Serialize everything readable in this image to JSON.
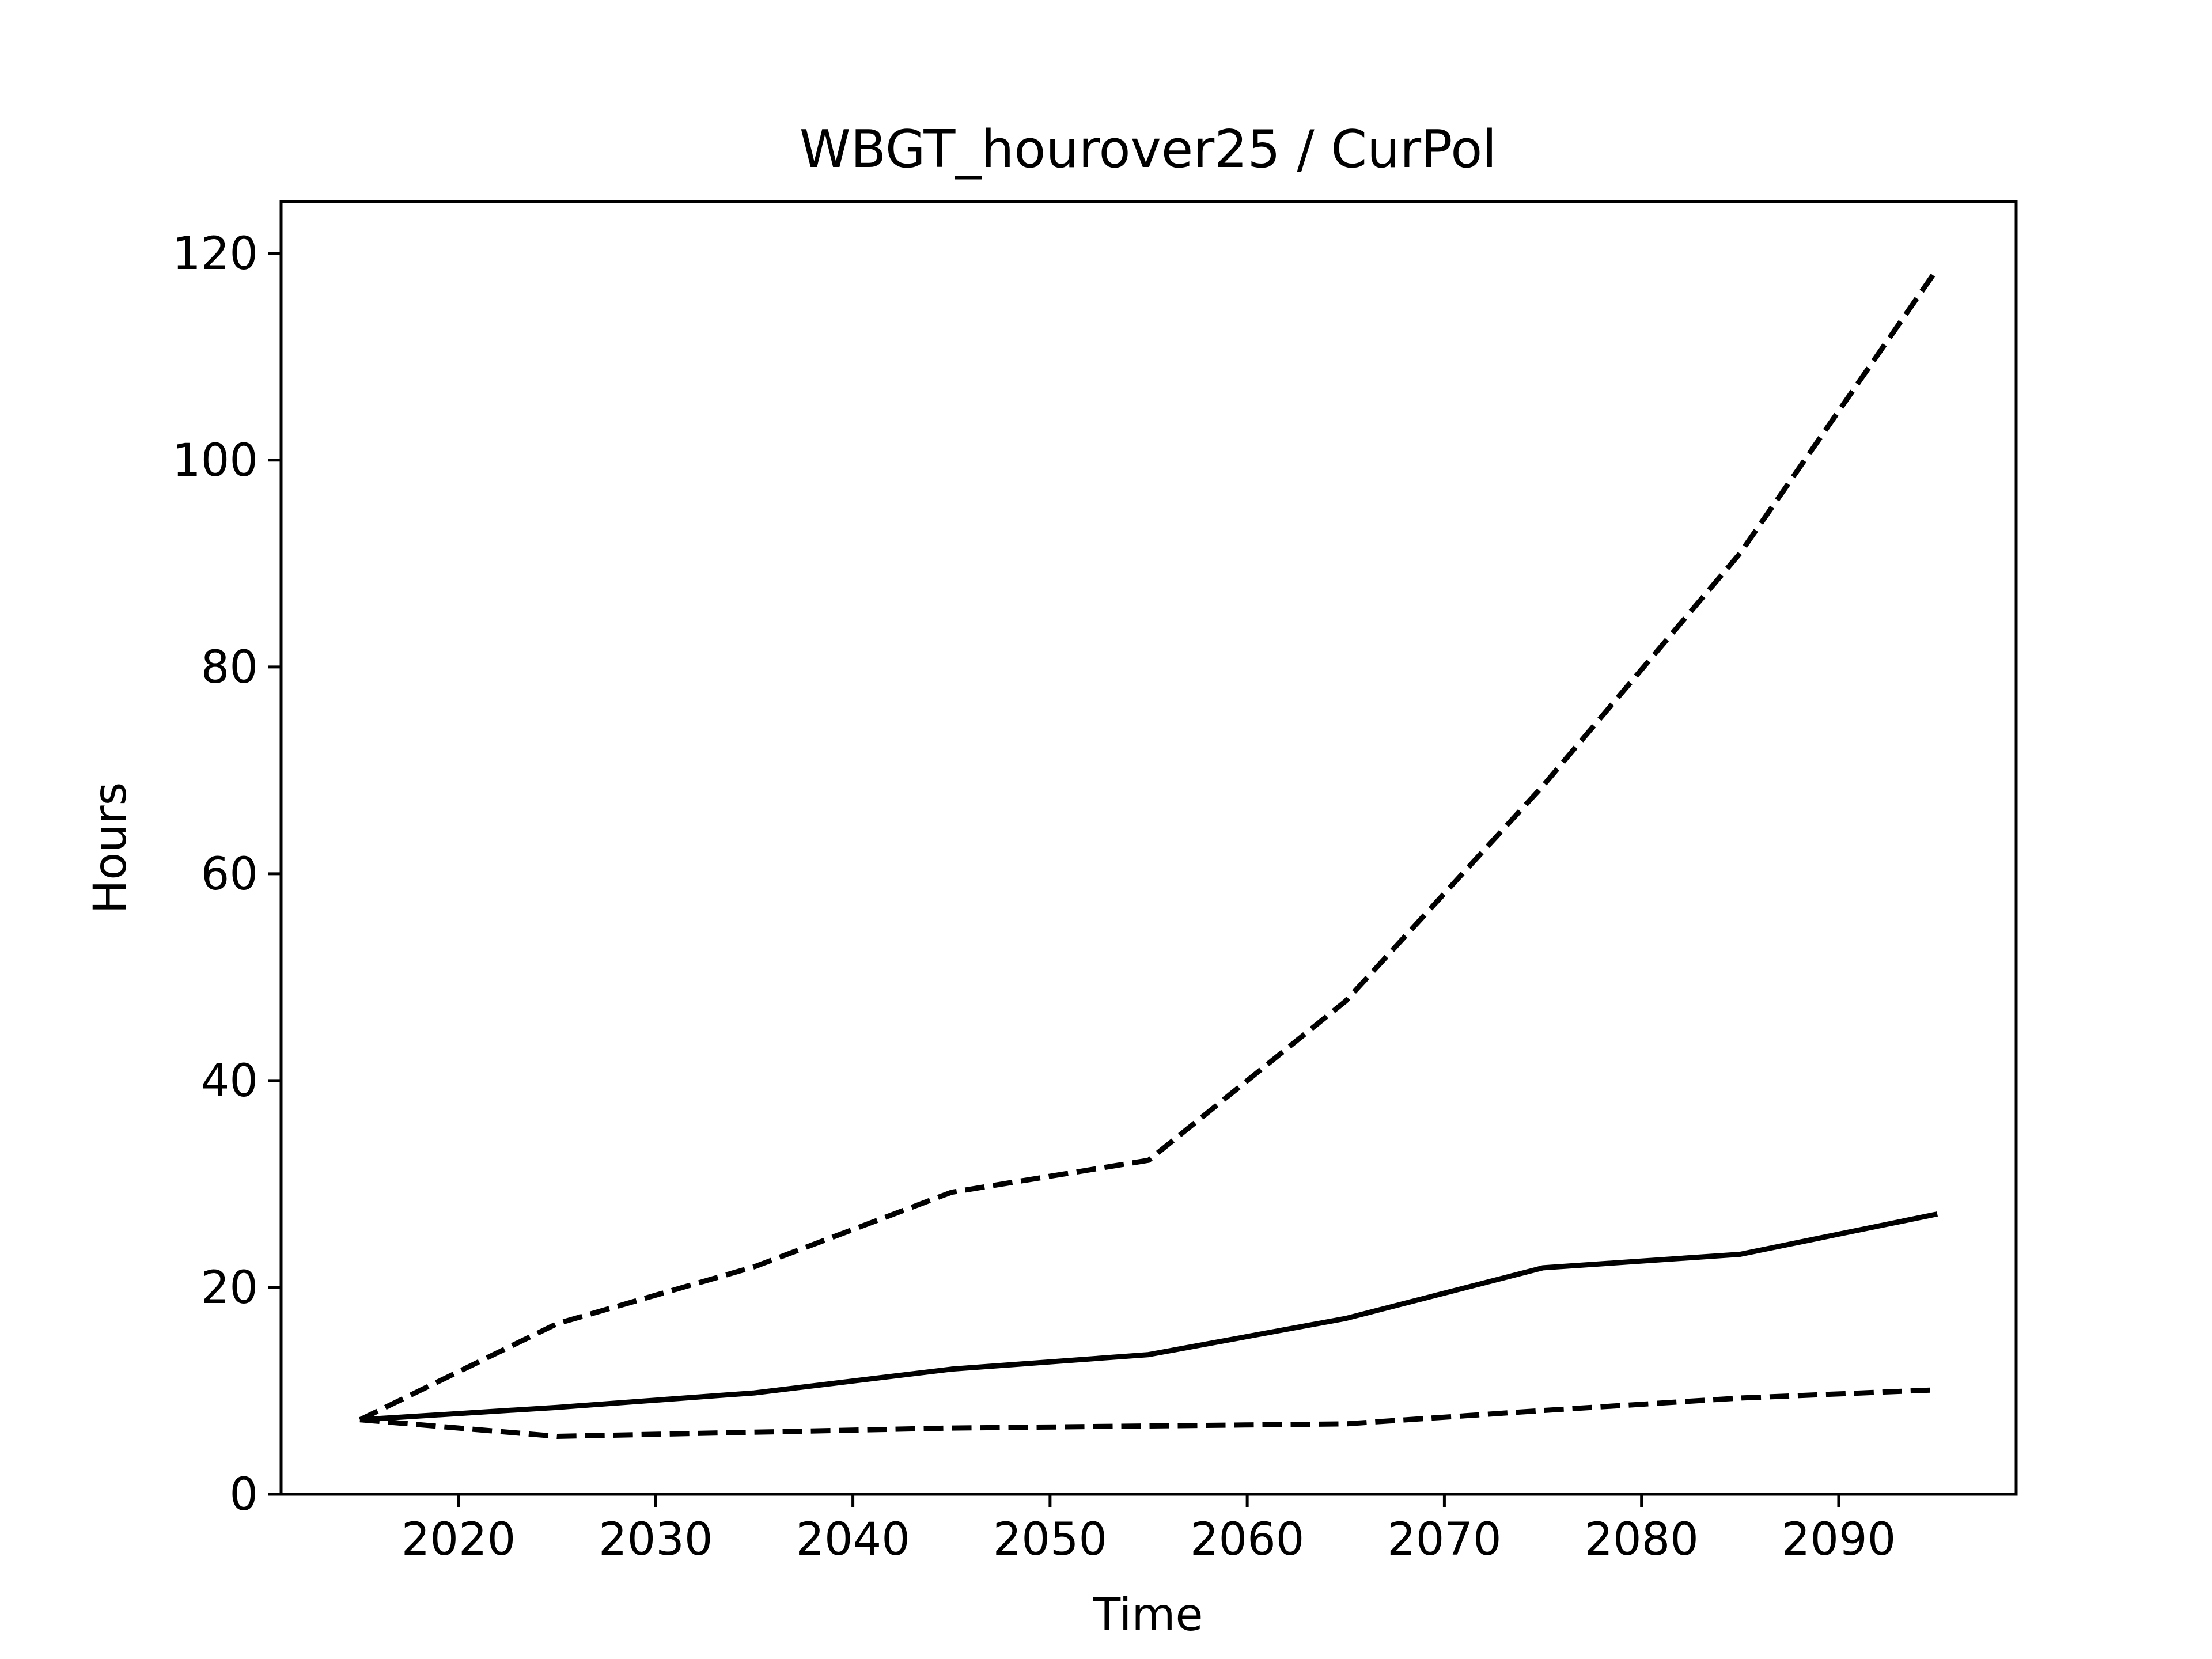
{
  "chart_data": {
    "type": "line",
    "title": "WBGT_hourover25 / CurPol",
    "xlabel": "Time",
    "ylabel": "Hours",
    "xlim": [
      2011,
      2099
    ],
    "ylim": [
      0,
      125
    ],
    "xticks": [
      2020,
      2030,
      2040,
      2050,
      2060,
      2070,
      2080,
      2090
    ],
    "yticks": [
      0,
      20,
      40,
      60,
      80,
      100,
      120
    ],
    "grid": false,
    "legend": "none",
    "colors": {
      "line": "#000000",
      "axes": "#000000",
      "background": "#ffffff"
    },
    "x": [
      2015,
      2025,
      2035,
      2045,
      2055,
      2065,
      2075,
      2085,
      2095
    ],
    "series": [
      {
        "style": "solid",
        "values": [
          7.2,
          8.4,
          9.8,
          12.1,
          13.5,
          17.0,
          21.9,
          23.2,
          27.1
        ]
      },
      {
        "style": "dashed",
        "values": [
          7.2,
          16.5,
          22.0,
          29.2,
          32.3,
          47.7,
          68.5,
          91.0,
          118.5
        ]
      },
      {
        "style": "dashed",
        "values": [
          7.2,
          5.6,
          6.0,
          6.4,
          6.6,
          6.8,
          8.1,
          9.3,
          10.1
        ]
      }
    ]
  }
}
